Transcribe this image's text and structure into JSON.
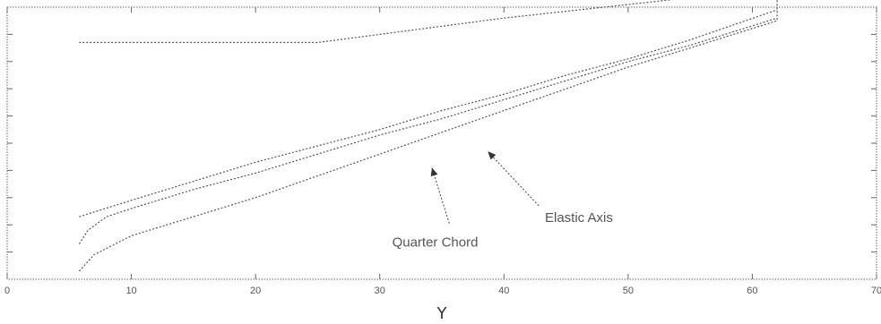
{
  "chart_data": {
    "type": "line",
    "title": "",
    "xlabel": "Y",
    "ylabel": "",
    "xlim": [
      0,
      70
    ],
    "ylim": [
      0,
      10
    ],
    "x_ticks": [
      0,
      10,
      20,
      30,
      40,
      50,
      60,
      70
    ],
    "x_tick_labels": [
      "0",
      "10",
      "20",
      "30",
      "40",
      "50",
      "60",
      "70"
    ],
    "y_ticks": [
      1,
      2,
      3,
      4,
      5,
      6,
      7,
      8,
      9
    ],
    "grid": false,
    "series": [
      {
        "label_key": "outline",
        "style": "dotted",
        "x": [
          5.8,
          5.8,
          7.0,
          10.0,
          15.0,
          20.0,
          25.0,
          30.0,
          35.0,
          40.0,
          45.0,
          50.0,
          55.0,
          62.0,
          62.0,
          50.0,
          40.0,
          30.0,
          25.0,
          5.8
        ],
        "y": [
          0.3,
          0.3,
          0.9,
          1.6,
          2.3,
          3.0,
          3.8,
          4.6,
          5.4,
          6.2,
          7.0,
          7.8,
          8.5,
          9.5,
          10.7,
          10.1,
          9.6,
          9.0,
          8.7,
          8.7
        ]
      },
      {
        "label_key": "quarter_chord",
        "style": "dotted",
        "x": [
          5.8,
          6.5,
          8.0,
          10.0,
          15.0,
          20.0,
          25.0,
          30.0,
          35.0,
          40.0,
          45.0,
          50.0,
          55.0,
          62.0
        ],
        "y": [
          1.3,
          1.8,
          2.3,
          2.6,
          3.3,
          3.9,
          4.6,
          5.3,
          5.9,
          6.6,
          7.3,
          8.0,
          8.6,
          9.6
        ]
      },
      {
        "label_key": "elastic_axis",
        "style": "dotted",
        "x": [
          5.8,
          10.0,
          15.0,
          20.0,
          25.0,
          30.0,
          35.0,
          40.0,
          45.0,
          50.0,
          55.0,
          62.0
        ],
        "y": [
          2.3,
          2.9,
          3.6,
          4.3,
          4.9,
          5.5,
          6.2,
          6.8,
          7.5,
          8.1,
          8.8,
          9.9
        ]
      }
    ],
    "annotations": [
      {
        "text": "Elastic Axis",
        "text_x": 43.3,
        "text_y": 2.1,
        "arrow_to": [
          38.7,
          4.7
        ]
      },
      {
        "text": "Quarter Chord",
        "text_x": 31.0,
        "text_y": 1.2,
        "arrow_to": [
          34.2,
          4.1
        ]
      }
    ]
  }
}
